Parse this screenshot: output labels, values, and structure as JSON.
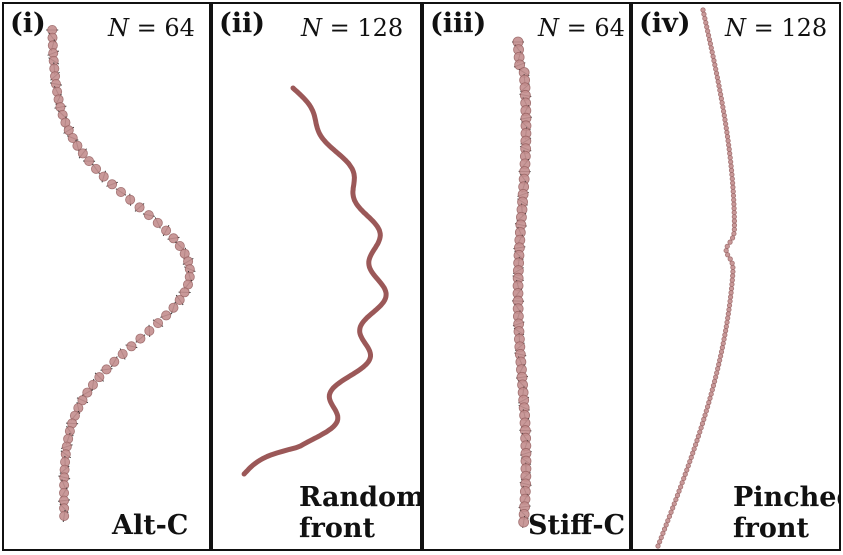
{
  "panels": [
    {
      "label": "(i)",
      "n_text": "N = 64",
      "n_sym": "N",
      "n_eq": "=",
      "n_num": "64",
      "caption": [
        "Alt-C"
      ]
    },
    {
      "label": "(ii)",
      "n_text": "N = 128",
      "n_sym": "N",
      "n_eq": "=",
      "n_num": "128",
      "caption": [
        "Random",
        "front"
      ]
    },
    {
      "label": "(iii)",
      "n_text": "N = 64",
      "n_sym": "N",
      "n_eq": "=",
      "n_num": "64",
      "caption": [
        "Stiff-C"
      ]
    },
    {
      "label": "(iv)",
      "n_text": "N = 128",
      "n_sym": "N",
      "n_eq": "=",
      "n_num": "128",
      "caption": [
        "Pinched",
        "front"
      ]
    }
  ],
  "colors": {
    "bead": "#c48f8f",
    "bead_edge": "#9a6464",
    "front": "#8a3b3b",
    "spike": "#333333",
    "border": "#111111"
  }
}
